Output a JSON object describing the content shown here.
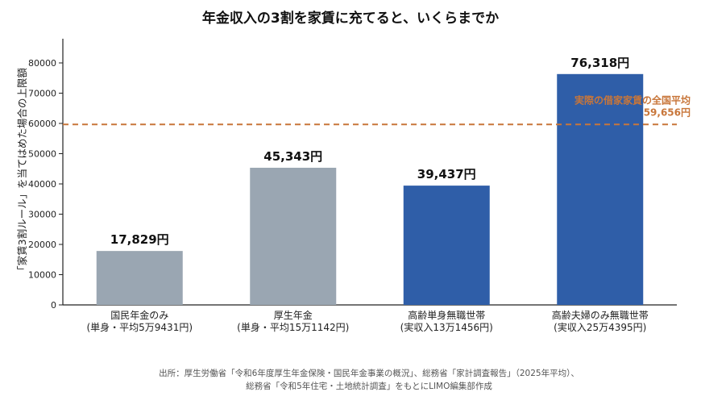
{
  "chart_data": {
    "type": "bar",
    "title": "年金収入の3割を家賃に充てると、いくらまでか",
    "ylabel": "「家賃3割ルール」を当てはめた場合の上限額",
    "xlabel": "",
    "ylim": [
      0,
      88000
    ],
    "yticks": [
      0,
      10000,
      20000,
      30000,
      40000,
      50000,
      60000,
      70000,
      80000
    ],
    "grid": false,
    "categories": [
      [
        "国民年金のみ",
        "(単身・平均5万9431円)"
      ],
      [
        "厚生年金",
        "(単身・平均15万1142円)"
      ],
      [
        "高齢単身無職世帯",
        "(実収入13万1456円)"
      ],
      [
        "高齢夫婦のみ無職世帯",
        "(実収入25万4395円)"
      ]
    ],
    "values": [
      17829,
      45343,
      39437,
      76318
    ],
    "value_labels": [
      "17,829円",
      "45,343円",
      "39,437円",
      "76,318円"
    ],
    "bar_colors": [
      "#9aa6b2",
      "#9aa6b2",
      "#2f5ea8",
      "#2f5ea8"
    ],
    "reference_line": {
      "value": 59656,
      "label": [
        "実際の借家家賃の全国平均",
        "59,656円"
      ],
      "color": "#c8763a",
      "style": "dashed"
    },
    "source": [
      "出所：厚生労働省「令和6年度厚生年金保険・国民年金事業の概況」、総務省「家計調査報告」（2025年平均）、",
      "総務省「令和5年住宅・土地統計調査」をもとにLIMO編集部作成"
    ]
  }
}
